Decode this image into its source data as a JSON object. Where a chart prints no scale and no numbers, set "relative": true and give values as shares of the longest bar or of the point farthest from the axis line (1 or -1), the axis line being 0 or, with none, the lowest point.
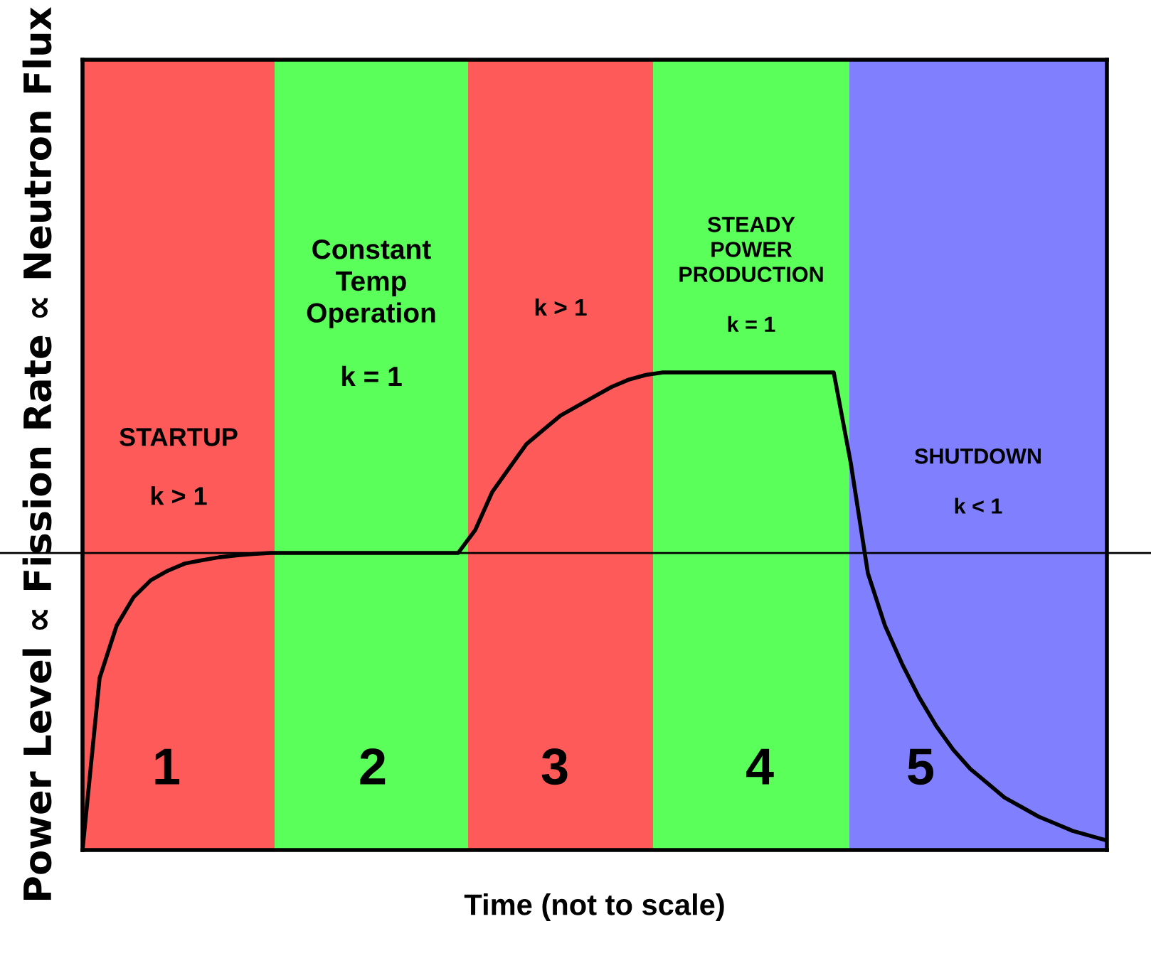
{
  "chart_data": {
    "type": "line",
    "relative": true,
    "xlabel": "Time (not to scale)",
    "ylabel": "Power Level ∝ Fission Rate ∝ Neutron Flux",
    "categories": [
      null,
      null,
      null,
      null,
      null,
      null,
      null,
      null,
      null,
      null,
      null,
      null,
      null,
      null,
      null,
      null,
      null,
      null,
      null,
      null,
      null,
      null,
      null,
      null,
      null,
      null,
      null,
      null,
      null,
      null,
      null,
      null,
      null,
      null,
      null,
      null,
      null,
      null,
      null,
      null,
      null,
      null,
      null,
      null,
      null,
      null,
      null,
      null,
      null,
      null,
      null,
      null,
      null,
      null,
      null,
      null,
      null,
      null,
      null,
      null,
      null
    ],
    "series": [
      {
        "color": "#000000",
        "values": [
          0,
          0.36,
          0.47,
          0.53,
          0.565,
          0.585,
          0.6,
          0.607,
          0.613,
          0.617,
          0.62,
          0.622,
          0.622,
          0.622,
          0.622,
          0.622,
          0.622,
          0.622,
          0.622,
          0.622,
          0.622,
          0.622,
          0.622,
          0.67,
          0.75,
          0.8,
          0.85,
          0.88,
          0.91,
          0.93,
          0.95,
          0.97,
          0.985,
          0.995,
          1.0,
          1.0,
          1.0,
          1.0,
          1.0,
          1.0,
          1.0,
          1.0,
          1.0,
          1.0,
          1.0,
          0.81,
          0.58,
          0.47,
          0.39,
          0.32,
          0.26,
          0.21,
          0.17,
          0.14,
          0.11,
          0.09,
          0.07,
          0.055,
          0.04,
          0.03,
          0.02
        ]
      }
    ],
    "tick_labels": false,
    "ref_lines": [
      {
        "axis": "y",
        "value": 0.622,
        "color": "#000000"
      }
    ],
    "annotations": [
      "STARTUP\n\nk > 1",
      "Constant\nTemp\nOperation\n\nk = 1",
      "k > 1",
      "STEADY\nPOWER\nPRODUCTION\n\nk = 1",
      "SHUTDOWN\n\nk < 1",
      "1",
      "2",
      "3",
      "4",
      "5"
    ]
  }
}
